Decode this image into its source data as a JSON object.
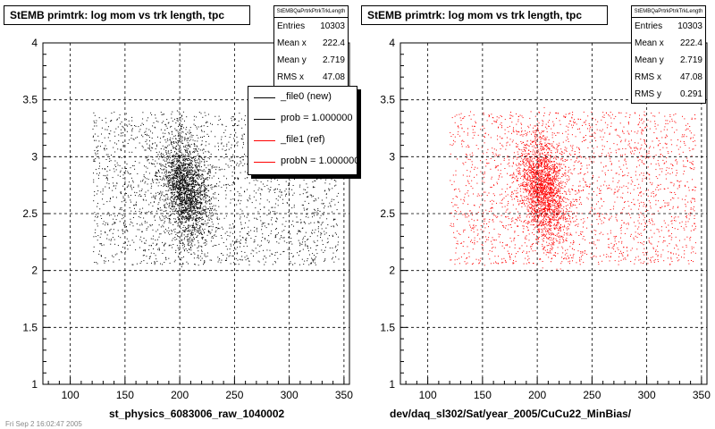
{
  "footer_date": "Fri Sep 2 16:02:47 2005",
  "chart_data": [
    {
      "type": "scatter",
      "title": "StEMB primtrk: log mom vs trk length, tpc",
      "xlabel": "st_physics_6083006_raw_1040002",
      "ylabel": "",
      "xlim": [
        75,
        355
      ],
      "ylim": [
        1,
        4
      ],
      "xticks": [
        "100",
        "150",
        "200",
        "250",
        "300",
        "350"
      ],
      "yticks": [
        "1",
        "1.5",
        "2",
        "2.5",
        "3",
        "3.5",
        "4"
      ],
      "xtick_values": [
        100,
        150,
        200,
        250,
        300,
        350
      ],
      "ytick_values": [
        1,
        1.5,
        2,
        2.5,
        3,
        3.5,
        4
      ],
      "grid": true,
      "marker_color": "#000000",
      "stats": {
        "name": "StEMBQaPrtrkPtrkTrkLength",
        "rows": [
          {
            "label": "Entries",
            "value": "10303"
          },
          {
            "label": "Mean x",
            "value": "222.4"
          },
          {
            "label": "Mean y",
            "value": "2.719"
          },
          {
            "label": "RMS x",
            "value": "47.08"
          }
        ]
      },
      "legend": {
        "placement": "top-right",
        "entries": [
          {
            "label": "_file0 (new)",
            "color": "#000000"
          },
          {
            "label": "prob = 1.000000",
            "color": "#000000"
          },
          {
            "label": "_file1 (ref)",
            "color": "#ff0000"
          },
          {
            "label": "probN = 1.000000",
            "color": "#ff0000"
          }
        ]
      }
    },
    {
      "type": "scatter",
      "title": "StEMB primtrk: log mom vs trk length, tpc",
      "xlabel": "dev/daq_sl302/Sat/year_2005/CuCu22_MinBias/",
      "ylabel": "",
      "xlim": [
        75,
        355
      ],
      "ylim": [
        1,
        4
      ],
      "xticks": [
        "100",
        "150",
        "200",
        "250",
        "300",
        "350"
      ],
      "yticks": [
        "1",
        "1.5",
        "2",
        "2.5",
        "3",
        "3.5",
        "4"
      ],
      "xtick_values": [
        100,
        150,
        200,
        250,
        300,
        350
      ],
      "ytick_values": [
        1,
        1.5,
        2,
        2.5,
        3,
        3.5,
        4
      ],
      "grid": true,
      "marker_color": "#ff0000",
      "stats": {
        "name": "StEMBQaPrtrkPtrkTrkLength",
        "rows": [
          {
            "label": "Entries",
            "value": "10303"
          },
          {
            "label": "Mean x",
            "value": "222.4"
          },
          {
            "label": "Mean y",
            "value": "2.719"
          },
          {
            "label": "RMS x",
            "value": "47.08"
          },
          {
            "label": "RMS y",
            "value": "0.291"
          }
        ]
      }
    }
  ]
}
